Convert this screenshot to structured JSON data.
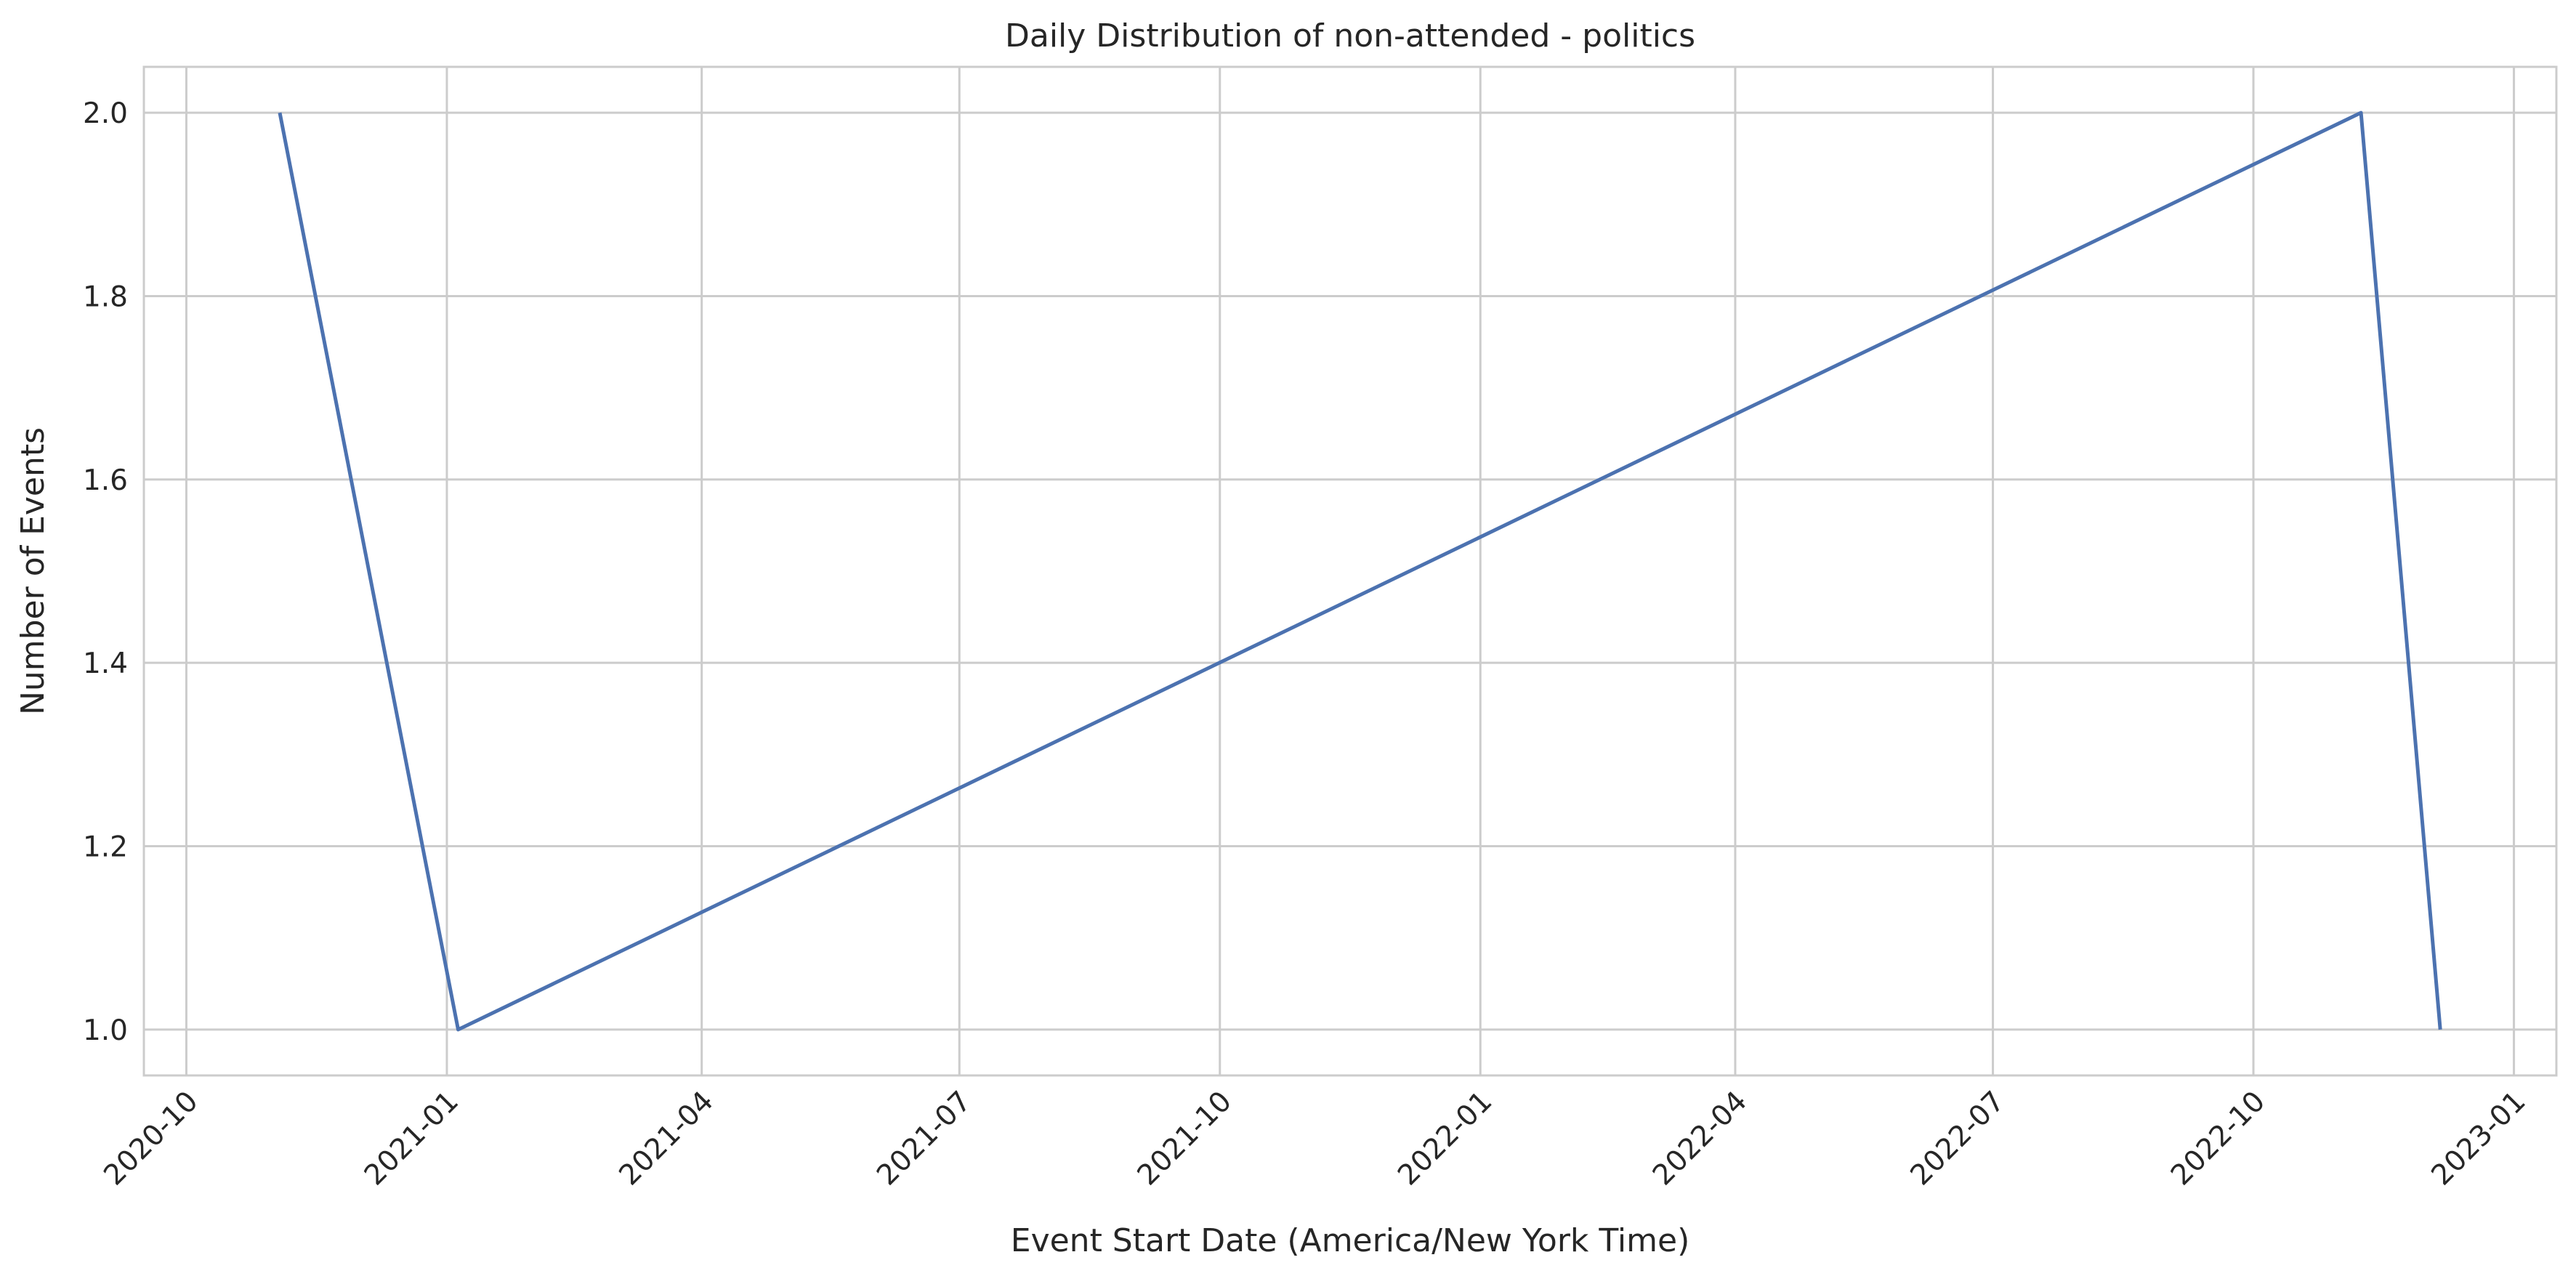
{
  "chart_data": {
    "type": "line",
    "title": "Daily Distribution of non-attended - politics",
    "xlabel": "Event Start Date (America/New York Time)",
    "ylabel": "Number of Events",
    "x_tick_labels": [
      "2020-10",
      "2021-01",
      "2021-04",
      "2021-07",
      "2021-10",
      "2022-01",
      "2022-04",
      "2022-07",
      "2022-10",
      "2023-01"
    ],
    "y_tick_labels": [
      "1.0",
      "1.2",
      "1.4",
      "1.6",
      "1.8",
      "2.0"
    ],
    "ylim": [
      0.95,
      2.05
    ],
    "xlim": [
      "2020-09-16",
      "2023-01-16"
    ],
    "grid": true,
    "series": [
      {
        "color": "#4c72b0",
        "points": [
          {
            "x": "2020-11-03",
            "y": 2
          },
          {
            "x": "2021-01-05",
            "y": 1
          },
          {
            "x": "2022-11-08",
            "y": 2
          },
          {
            "x": "2022-12-06",
            "y": 1
          }
        ]
      }
    ]
  }
}
